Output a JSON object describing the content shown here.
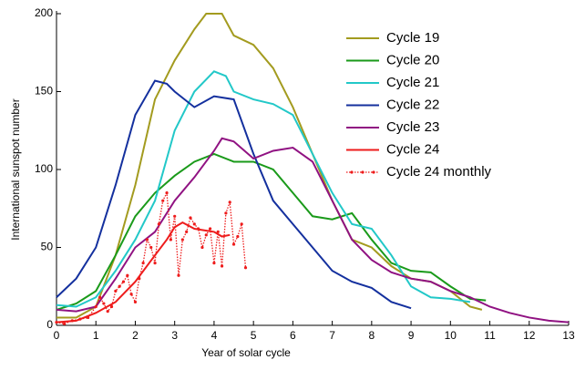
{
  "chart_data": {
    "type": "line",
    "xlabel": "Year of solar cycle",
    "ylabel": "International sunspot number",
    "xlim": [
      0,
      13
    ],
    "xticks": [
      0,
      1,
      2,
      3,
      4,
      5,
      6,
      7,
      8,
      9,
      10,
      11,
      12,
      13
    ],
    "ylim": [
      0,
      200
    ],
    "yticks": [
      0,
      50,
      100,
      150,
      200
    ],
    "legend": "upper right",
    "series": [
      {
        "name": "Cycle 19",
        "color": "#a39b1f",
        "x": [
          0,
          0.5,
          1,
          1.5,
          2,
          2.5,
          2.8,
          3,
          3.5,
          3.8,
          4,
          4.2,
          4.5,
          5,
          5.5,
          6,
          6.5,
          7,
          7.5,
          8,
          8.5,
          9,
          9.5,
          10,
          10.5,
          10.8
        ],
        "values": [
          5,
          5,
          12,
          45,
          90,
          145,
          160,
          170,
          190,
          200,
          200,
          200,
          186,
          180,
          165,
          140,
          110,
          80,
          55,
          50,
          38,
          30,
          28,
          22,
          12,
          10
        ]
      },
      {
        "name": "Cycle 20",
        "color": "#1a9a1a",
        "x": [
          0,
          0.5,
          1,
          1.5,
          2,
          2.5,
          3,
          3.5,
          4,
          4.5,
          5,
          5.5,
          6,
          6.5,
          7,
          7.5,
          8,
          8.5,
          9,
          9.5,
          10,
          10.5,
          10.9
        ],
        "values": [
          10,
          14,
          22,
          45,
          70,
          85,
          96,
          105,
          110,
          105,
          105,
          100,
          85,
          70,
          68,
          72,
          55,
          40,
          35,
          34,
          25,
          17,
          16
        ]
      },
      {
        "name": "Cycle 21",
        "color": "#22c8c8",
        "x": [
          0,
          0.5,
          1,
          1.5,
          2,
          2.5,
          3,
          3.5,
          4,
          4.3,
          4.5,
          5,
          5.5,
          6,
          6.5,
          7,
          7.5,
          8,
          8.5,
          9,
          9.5,
          10,
          10.5
        ],
        "values": [
          13,
          12,
          18,
          35,
          55,
          80,
          125,
          150,
          163,
          160,
          150,
          145,
          142,
          135,
          110,
          85,
          65,
          62,
          45,
          25,
          18,
          17,
          15
        ]
      },
      {
        "name": "Cycle 22",
        "color": "#14309e",
        "x": [
          0,
          0.5,
          1,
          1.5,
          2,
          2.5,
          2.8,
          3,
          3.5,
          4,
          4.5,
          5,
          5.5,
          6,
          6.5,
          7,
          7.5,
          8,
          8.5,
          9
        ],
        "values": [
          18,
          30,
          50,
          90,
          135,
          157,
          155,
          150,
          140,
          147,
          145,
          110,
          80,
          65,
          50,
          35,
          28,
          24,
          15,
          11
        ]
      },
      {
        "name": "Cycle 23",
        "color": "#901282",
        "x": [
          0,
          0.5,
          1,
          1.5,
          2,
          2.5,
          3,
          3.5,
          4,
          4.2,
          4.5,
          5,
          5.5,
          6,
          6.5,
          7,
          7.5,
          8,
          8.5,
          9,
          9.5,
          10,
          10.5,
          11,
          11.5,
          12,
          12.5,
          13
        ],
        "values": [
          10,
          9,
          12,
          30,
          50,
          60,
          80,
          95,
          112,
          120,
          118,
          107,
          112,
          114,
          105,
          80,
          55,
          42,
          34,
          30,
          28,
          22,
          18,
          12,
          8,
          5,
          3,
          2
        ]
      },
      {
        "name": "Cycle 24",
        "color": "#ee1c1c",
        "x": [
          0,
          0.5,
          1,
          1.5,
          2,
          2.5,
          2.8,
          3,
          3.2,
          3.5,
          4,
          4.2,
          4.4
        ],
        "values": [
          2,
          3,
          8,
          15,
          28,
          45,
          55,
          63,
          66,
          62,
          60,
          57,
          58
        ]
      },
      {
        "name": "Cycle 24 monthly",
        "color": "#ee1c1c",
        "dash": "dotted",
        "markers": true,
        "x": [
          0,
          0.2,
          0.4,
          0.6,
          0.8,
          1,
          1.1,
          1.2,
          1.3,
          1.4,
          1.5,
          1.6,
          1.7,
          1.8,
          1.9,
          2,
          2.1,
          2.2,
          2.3,
          2.4,
          2.5,
          2.6,
          2.7,
          2.8,
          2.9,
          3,
          3.1,
          3.2,
          3.3,
          3.4,
          3.5,
          3.6,
          3.7,
          3.8,
          3.9,
          4,
          4.1,
          4.2,
          4.3,
          4.4,
          4.5,
          4.6,
          4.7,
          4.8
        ],
        "values": [
          2,
          1,
          3,
          4,
          5,
          12,
          18,
          14,
          9,
          12,
          22,
          25,
          28,
          32,
          20,
          15,
          30,
          40,
          55,
          50,
          40,
          65,
          80,
          85,
          55,
          70,
          32,
          55,
          60,
          69,
          65,
          62,
          50,
          58,
          62,
          40,
          60,
          38,
          72,
          79,
          52,
          57,
          65,
          37
        ]
      }
    ]
  }
}
